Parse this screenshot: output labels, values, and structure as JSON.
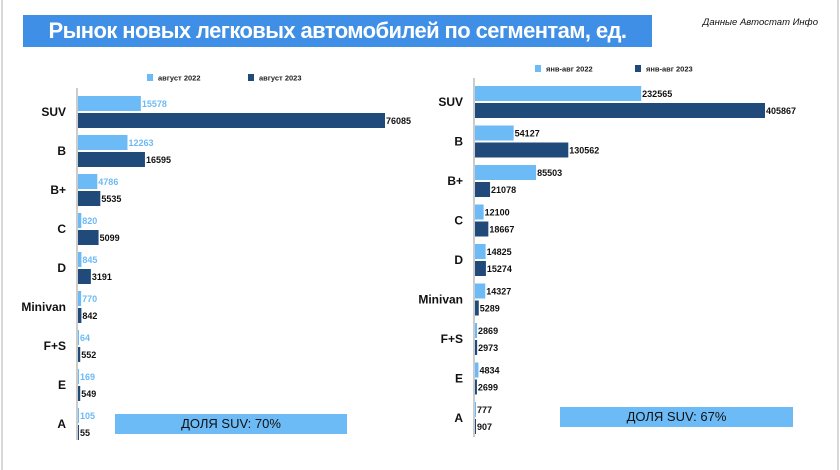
{
  "title": "Рынок новых легковых автомобилей по сегментам, ед.",
  "source": "Данные Автостат Инфо",
  "colors": {
    "title_bg": "#3f8fe6",
    "series_light": "#6cbaf6",
    "series_dark": "#1f4a7a"
  },
  "chart_data": [
    {
      "type": "bar",
      "orientation": "horizontal",
      "categories": [
        "SUV",
        "B",
        "B+",
        "C",
        "D",
        "Minivan",
        "F+S",
        "E",
        "A"
      ],
      "series": [
        {
          "name": "август 2022",
          "values": [
            15578,
            12263,
            4786,
            820,
            845,
            770,
            64,
            169,
            105
          ]
        },
        {
          "name": "август 2023",
          "values": [
            76085,
            16595,
            5535,
            5099,
            3191,
            842,
            552,
            549,
            55
          ]
        }
      ],
      "legend": "top",
      "grid": false,
      "xlim": [
        0,
        76085
      ],
      "annotation": "ДОЛЯ SUV: 70%"
    },
    {
      "type": "bar",
      "orientation": "horizontal",
      "categories": [
        "SUV",
        "B",
        "B+",
        "C",
        "D",
        "Minivan",
        "F+S",
        "E",
        "A"
      ],
      "series": [
        {
          "name": "янв-авг 2022",
          "values": [
            232565,
            54127,
            85503,
            12100,
            14825,
            14327,
            2869,
            4834,
            777
          ]
        },
        {
          "name": "янв-авг 2023",
          "values": [
            405867,
            130562,
            21078,
            18667,
            15274,
            5289,
            2973,
            2699,
            907
          ]
        }
      ],
      "legend": "top",
      "grid": false,
      "xlim": [
        0,
        405867
      ],
      "annotation": "ДОЛЯ SUV: 67%"
    }
  ]
}
